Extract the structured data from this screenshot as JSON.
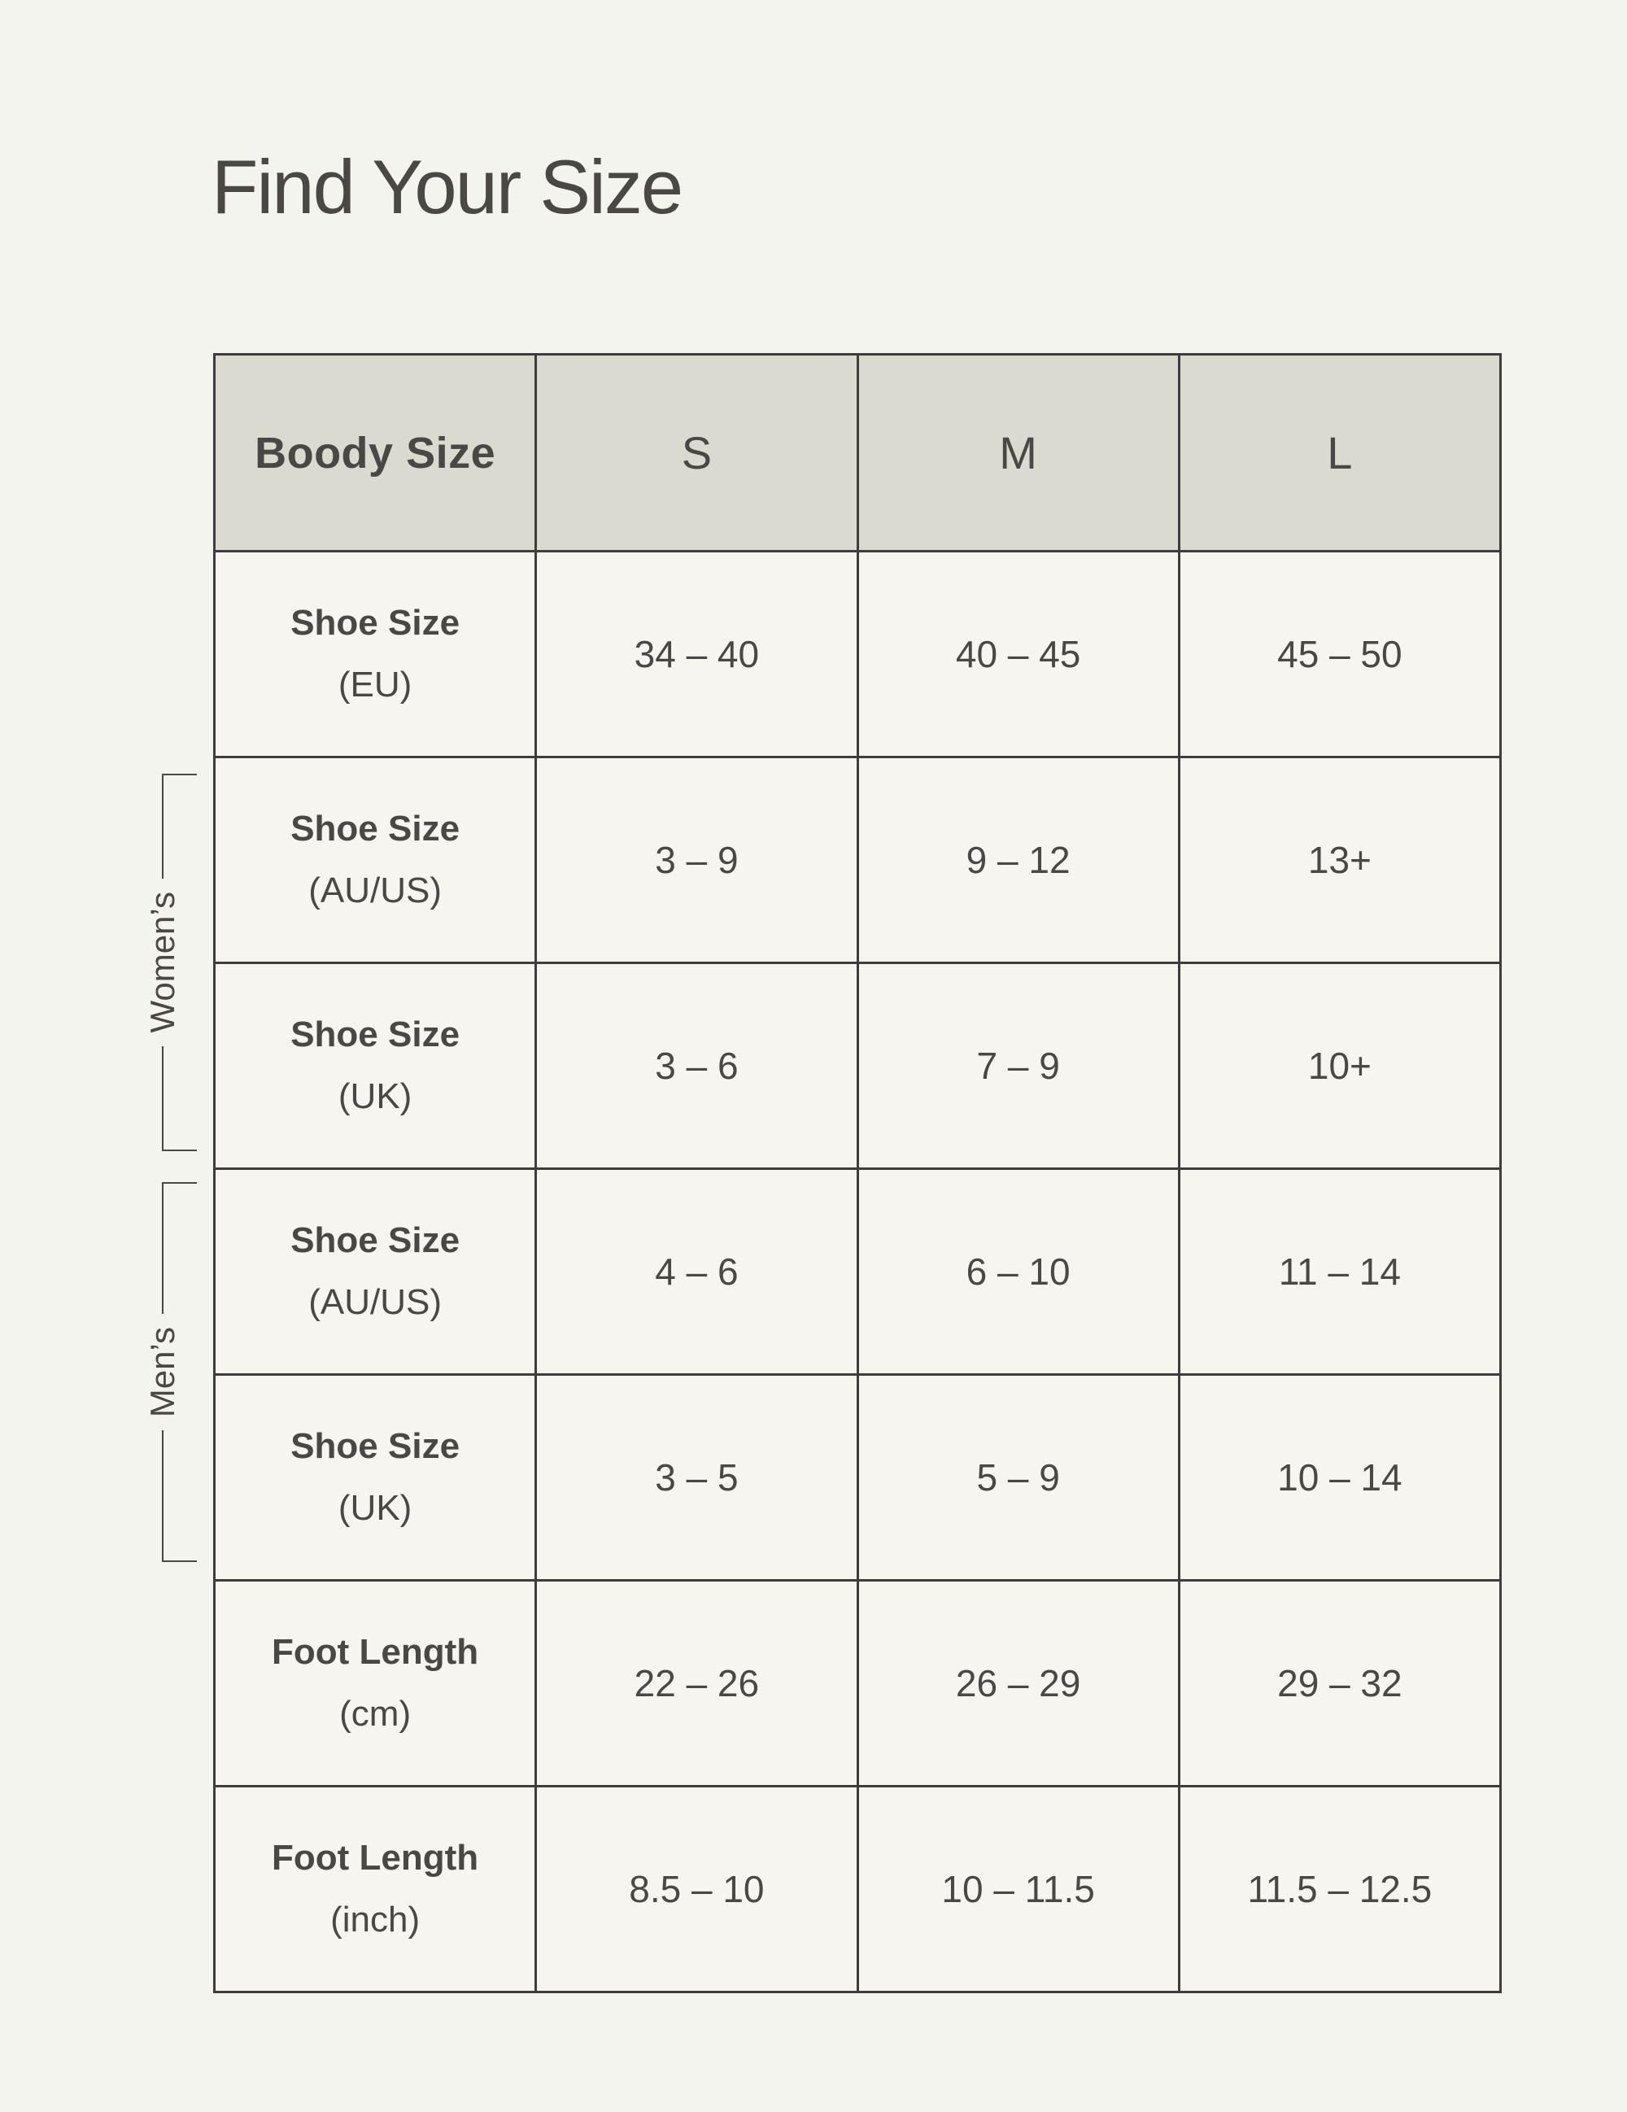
{
  "title": "Find Your Size",
  "groups": {
    "womens": "Women’s",
    "mens": "Men’s"
  },
  "table": {
    "header": {
      "label": "Boody Size",
      "sizes": [
        "S",
        "M",
        "L"
      ]
    },
    "rows": [
      {
        "label": "Shoe Size",
        "unit": "(EU)",
        "values": [
          "34 – 40",
          "40 – 45",
          "45 – 50"
        ]
      },
      {
        "label": "Shoe Size",
        "unit": "(AU/US)",
        "values": [
          "3 – 9",
          "9 – 12",
          "13+"
        ]
      },
      {
        "label": "Shoe Size",
        "unit": "(UK)",
        "values": [
          "3 – 6",
          "7 – 9",
          "10+"
        ]
      },
      {
        "label": "Shoe Size",
        "unit": "(AU/US)",
        "values": [
          "4 – 6",
          "6 – 10",
          "11 – 14"
        ]
      },
      {
        "label": "Shoe Size",
        "unit": "(UK)",
        "values": [
          "3 – 5",
          "5 – 9",
          "10 – 14"
        ]
      },
      {
        "label": "Foot Length",
        "unit": "(cm)",
        "values": [
          "22 – 26",
          "26 – 29",
          "29 – 32"
        ]
      },
      {
        "label": "Foot Length",
        "unit": "(inch)",
        "values": [
          "8.5 – 10",
          "10 – 11.5",
          "11.5 – 12.5"
        ]
      }
    ]
  },
  "colors": {
    "page_bg": "#F4F4EF",
    "cell_bg": "#F6F5F0",
    "header_bg": "#DBDAD0",
    "border": "#3E3D3C",
    "text": "#4A4845"
  },
  "chart_data": {
    "type": "table",
    "title": "Find Your Size",
    "columns": [
      "Boody Size",
      "S",
      "M",
      "L"
    ],
    "row_groups": [
      {
        "group": "",
        "rows": [
          [
            "Shoe Size (EU)",
            "34 – 40",
            "40 – 45",
            "45 – 50"
          ]
        ]
      },
      {
        "group": "Women’s",
        "rows": [
          [
            "Shoe Size (AU/US)",
            "3 – 9",
            "9 – 12",
            "13+"
          ],
          [
            "Shoe Size (UK)",
            "3 – 6",
            "7 – 9",
            "10+"
          ]
        ]
      },
      {
        "group": "Men’s",
        "rows": [
          [
            "Shoe Size (AU/US)",
            "4 – 6",
            "6 – 10",
            "11 – 14"
          ],
          [
            "Shoe Size (UK)",
            "3 – 5",
            "5 – 9",
            "10 – 14"
          ]
        ]
      },
      {
        "group": "",
        "rows": [
          [
            "Foot Length (cm)",
            "22 – 26",
            "26 – 29",
            "29 – 32"
          ],
          [
            "Foot Length (inch)",
            "8.5 – 10",
            "10 – 11.5",
            "11.5 – 12.5"
          ]
        ]
      }
    ]
  }
}
